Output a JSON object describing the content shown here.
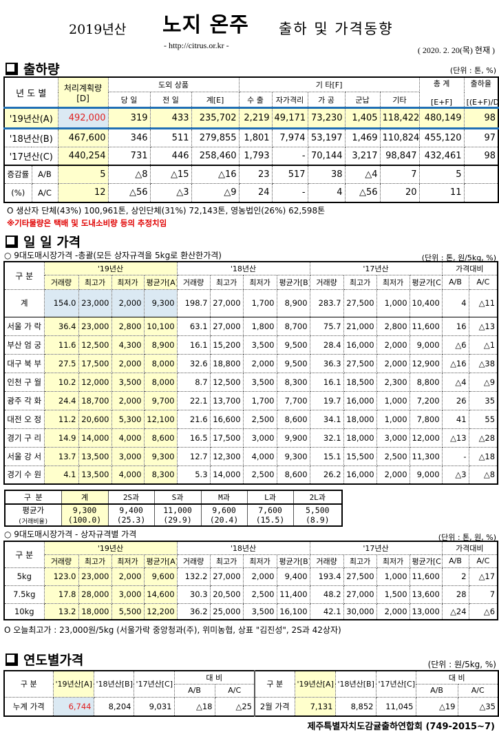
{
  "header": {
    "year_label": "2019년산",
    "product": "노지 온주",
    "suffix": "출하 및 가격동향",
    "url": "- http://citrus.or.kr -",
    "date": "( 2020. 2. 20(목) 현재 )"
  },
  "shipment": {
    "title": "출하량",
    "unit": "(단위 : 톤, %)",
    "headers": {
      "year": "년 도 별",
      "plan": "처리계획량",
      "plan_code": "[D]",
      "outside": "도외 상품",
      "other": "기      타[F]",
      "total": "총  계",
      "total_code": "[E+F]",
      "rate": "출하율",
      "rate_code": "[(E+F)/D]",
      "sub": [
        "당 일",
        "전 일",
        "계[E]",
        "수 출",
        "자가격리",
        "가 공",
        "군납",
        "기타"
      ]
    },
    "rows": [
      {
        "label": [
          "'19년산(A)"
        ],
        "cells": [
          "492,000",
          "319",
          "433",
          "235,702",
          "2,219",
          "49,171",
          "73,230",
          "1,405",
          "118,422",
          "480,149",
          "98"
        ]
      },
      {
        "label": [
          "'18년산(B)"
        ],
        "cells": [
          "467,600",
          "346",
          "511",
          "279,855",
          "1,801",
          "7,974",
          "53,197",
          "1,469",
          "110,824",
          "455,120",
          "97"
        ]
      },
      {
        "label": [
          "'17년산(C)"
        ],
        "cells": [
          "440,254",
          "731",
          "446",
          "258,460",
          "1,793",
          "-",
          "70,144",
          "3,217",
          "98,847",
          "432,461",
          "98"
        ]
      },
      {
        "label": [
          "증감률",
          "A/B"
        ],
        "cells": [
          "5",
          "△8",
          "△15",
          "△16",
          "23",
          "517",
          "38",
          "△4",
          "7",
          "5",
          ""
        ]
      },
      {
        "label": [
          "(%)",
          "A/C"
        ],
        "cells": [
          "12",
          "△56",
          "△3",
          "△9",
          "24",
          "-",
          "4",
          "△56",
          "20",
          "11",
          ""
        ]
      }
    ],
    "note": "O 생산자 단체(43%) 100,961톤, 상인단체(31%) 72,143톤, 영농법인(26%) 62,598톤",
    "warning": "※기타물량은 택배 및 도내소비량 등의 추정치임"
  },
  "daily": {
    "title": "일 일 가격",
    "subtitle": "○ 9대도매시장가격 -총괄(모든 상자규격을 5kg로 환산한가격)",
    "unit": "(단위 : 톤, 원/5kg, %)",
    "headers": {
      "div": "구  분",
      "y19": "'19년산",
      "y18": "'18년산",
      "y17": "'17년산",
      "cmp": "가격대비",
      "sub": [
        "거래량",
        "최고가",
        "최저가",
        "평균가[A]",
        "거래량",
        "최고가",
        "최저가",
        "평균가[B]",
        "거래량",
        "최고가",
        "최저가",
        "평균가[C]",
        "A/B",
        "A/C"
      ]
    },
    "rows": [
      {
        "label": "계",
        "cells": [
          "154.0",
          "23,000",
          "2,000",
          "9,300",
          "198.7",
          "27,000",
          "1,700",
          "8,900",
          "283.7",
          "27,500",
          "1,000",
          "10,400",
          "4",
          "△11"
        ]
      },
      {
        "label": "서울 가 락",
        "cells": [
          "36.4",
          "23,000",
          "2,800",
          "10,100",
          "63.1",
          "27,000",
          "1,800",
          "8,700",
          "75.7",
          "21,000",
          "2,800",
          "11,600",
          "16",
          "△13"
        ]
      },
      {
        "label": "부산 엄 궁",
        "cells": [
          "11.6",
          "12,500",
          "4,300",
          "8,900",
          "16.1",
          "15,200",
          "3,500",
          "9,500",
          "28.4",
          "16,000",
          "2,000",
          "9,000",
          "△6",
          "△1"
        ]
      },
      {
        "label": "대구 북 부",
        "cells": [
          "27.5",
          "17,500",
          "2,000",
          "8,000",
          "32.6",
          "18,800",
          "2,000",
          "9,500",
          "36.3",
          "27,500",
          "2,000",
          "12,900",
          "△16",
          "△38"
        ]
      },
      {
        "label": "인천 구 월",
        "cells": [
          "10.2",
          "12,000",
          "3,500",
          "8,000",
          "8.7",
          "12,500",
          "3,500",
          "8,300",
          "16.1",
          "18,500",
          "2,300",
          "8,800",
          "△4",
          "△9"
        ]
      },
      {
        "label": "광주 각 화",
        "cells": [
          "24.4",
          "18,700",
          "2,000",
          "9,700",
          "22.1",
          "13,700",
          "1,700",
          "7,700",
          "19.7",
          "16,000",
          "1,000",
          "7,200",
          "26",
          "35"
        ]
      },
      {
        "label": "대전 오 정",
        "cells": [
          "11.2",
          "20,600",
          "5,300",
          "12,100",
          "21.6",
          "16,600",
          "2,500",
          "8,600",
          "34.1",
          "18,000",
          "1,000",
          "7,800",
          "41",
          "55"
        ]
      },
      {
        "label": "경기 구 리",
        "cells": [
          "14.9",
          "14,000",
          "4,000",
          "8,600",
          "16.5",
          "17,500",
          "3,000",
          "9,900",
          "32.1",
          "18,000",
          "3,000",
          "12,000",
          "△13",
          "△28"
        ]
      },
      {
        "label": "서울 강 서",
        "cells": [
          "13.7",
          "13,500",
          "3,000",
          "9,300",
          "12.7",
          "12,300",
          "4,000",
          "9,300",
          "15.1",
          "15,500",
          "2,500",
          "11,300",
          "-",
          "△18"
        ]
      },
      {
        "label": "경기 수 원",
        "cells": [
          "4.1",
          "13,500",
          "4,000",
          "8,300",
          "5.3",
          "14,000",
          "2,500",
          "8,600",
          "26.2",
          "16,000",
          "2,000",
          "9,000",
          "△3",
          "△8"
        ]
      }
    ]
  },
  "grades": {
    "headers": [
      "구  분",
      "계",
      "2S과",
      "S과",
      "M과",
      "L과",
      "2L과"
    ],
    "row_label": "평균가",
    "row_label2": "(거래비율)",
    "prices": [
      "9,300",
      "9,400",
      "11,000",
      "9,600",
      "7,600",
      "5,500"
    ],
    "ratios": [
      "(100.0)",
      "(25.3)",
      "(29.9)",
      "(20.4)",
      "(15.5)",
      "(8.9)"
    ]
  },
  "box": {
    "subtitle": "○ 9대도매시장가격 - 상자규격별 가격",
    "unit": "(단위 : 톤, 원, %)",
    "rows": [
      {
        "label": "5kg",
        "cells": [
          "123.0",
          "23,000",
          "2,000",
          "9,600",
          "132.2",
          "27,000",
          "2,000",
          "9,400",
          "193.4",
          "27,500",
          "1,000",
          "11,600",
          "2",
          "△17"
        ]
      },
      {
        "label": "7.5kg",
        "cells": [
          "17.8",
          "28,000",
          "3,000",
          "14,600",
          "30.3",
          "20,500",
          "2,500",
          "11,400",
          "48.2",
          "27,000",
          "1,500",
          "13,600",
          "28",
          "7"
        ]
      },
      {
        "label": "10kg",
        "cells": [
          "13.2",
          "18,000",
          "5,500",
          "12,200",
          "36.2",
          "25,000",
          "3,500",
          "16,100",
          "42.1",
          "30,000",
          "2,000",
          "13,000",
          "△24",
          "△6"
        ]
      }
    ],
    "note": "O 오늘최고가 :  23,000원/5kg (서울가락  중앙청과(주),  위미농협,  상표 \"김진성\",  2S과  42상자)"
  },
  "yearly": {
    "title": "연도별가격",
    "unit": "(단위 : 원/5kg, %)",
    "headers": {
      "div": "구    분",
      "a": "'19년산[A]",
      "b": "'18년산[B]",
      "c": "'17년산[C]",
      "cmp": "대    비",
      "ab": "A/B",
      "ac": "A/C"
    },
    "left": {
      "label": "누계 가격",
      "cells": [
        "6,744",
        "8,204",
        "9,031",
        "△18",
        "△25"
      ]
    },
    "right": {
      "label": "2월 가격",
      "cells": [
        "7,131",
        "8,852",
        "11,045",
        "△19",
        "△35"
      ]
    }
  },
  "footer": "제주특별자치도감귤출하연합회 (749-2015~7)"
}
